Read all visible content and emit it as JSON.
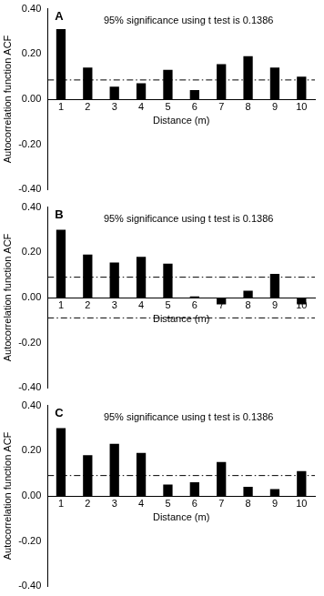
{
  "chart_data": [
    {
      "type": "bar",
      "title": "A",
      "annotations": [
        "95% significance using t test is 0.1386"
      ],
      "xlabel": "Distance (m)",
      "ylabel": "Autocorrelation function ACF",
      "categories": [
        1,
        2,
        3,
        4,
        5,
        6,
        7,
        8,
        9,
        10
      ],
      "values": [
        0.31,
        0.14,
        0.055,
        0.07,
        0.13,
        0.04,
        0.155,
        0.19,
        0.14,
        0.1
      ],
      "reference_lines": [
        0.085
      ],
      "color": "#000000",
      "ylim": [
        -0.4,
        0.4
      ],
      "yticks": [
        {
          "value": -0.4,
          "label": "-0.40"
        },
        {
          "value": -0.2,
          "label": "-0.20"
        },
        {
          "value": 0,
          "label": "0.00"
        },
        {
          "value": 0.2,
          "label": "0.20"
        },
        {
          "value": 0.4,
          "label": "0.40"
        }
      ],
      "grid": false
    },
    {
      "type": "bar",
      "title": "B",
      "annotations": [
        "95% significance using t test is 0.1386"
      ],
      "xlabel": "Distance (m)",
      "ylabel": "Autocorrelation function ACF",
      "categories": [
        1,
        2,
        3,
        4,
        5,
        6,
        7,
        8,
        9,
        10
      ],
      "values": [
        0.3,
        0.19,
        0.155,
        0.18,
        0.15,
        0.005,
        -0.03,
        0.03,
        0.105,
        -0.03
      ],
      "reference_lines": [
        0.09,
        -0.09
      ],
      "color": "#000000",
      "ylim": [
        -0.4,
        0.4
      ],
      "yticks": [
        {
          "value": -0.4,
          "label": "-0.40"
        },
        {
          "value": -0.2,
          "label": "-0.20"
        },
        {
          "value": 0,
          "label": "0.00"
        },
        {
          "value": 0.2,
          "label": "0.20"
        },
        {
          "value": 0.4,
          "label": "0.40"
        }
      ],
      "grid": false
    },
    {
      "type": "bar",
      "title": "C",
      "annotations": [
        "95% significance using t test is 0.1386"
      ],
      "xlabel": "Distance (m)",
      "ylabel": "Autocorrelation function ACF",
      "categories": [
        1,
        2,
        3,
        4,
        5,
        6,
        7,
        8,
        9,
        10
      ],
      "values": [
        0.3,
        0.18,
        0.23,
        0.19,
        0.05,
        0.06,
        0.15,
        0.04,
        0.03,
        0.11
      ],
      "reference_lines": [
        0.09
      ],
      "color": "#000000",
      "ylim": [
        -0.4,
        0.4
      ],
      "yticks": [
        {
          "value": -0.4,
          "label": "-0.40"
        },
        {
          "value": -0.2,
          "label": "-0.20"
        },
        {
          "value": 0,
          "label": "0.00"
        },
        {
          "value": 0.2,
          "label": "0.20"
        },
        {
          "value": 0.4,
          "label": "0.40"
        }
      ],
      "grid": false
    }
  ]
}
